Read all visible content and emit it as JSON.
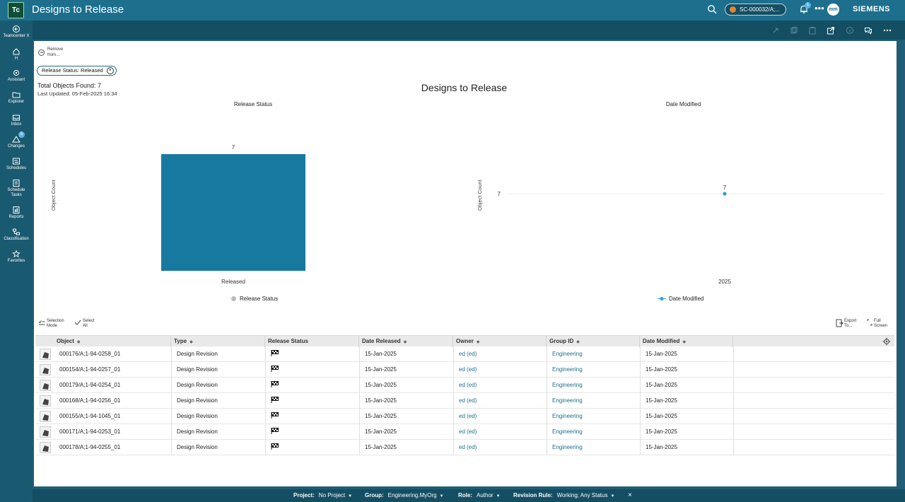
{
  "header": {
    "logo_text": "Tc",
    "title": "Designs to Release",
    "context": "SC-000032/A;...",
    "notification_count": "1",
    "more": "•••",
    "avatar": "mm",
    "brand": "SIEMENS"
  },
  "nav": {
    "items": [
      {
        "label": "Teamcenter X",
        "icon": "circle-arrow-icon"
      },
      {
        "label": "H",
        "icon": "home-icon"
      },
      {
        "label": "Assistant",
        "icon": "assistant-icon"
      },
      {
        "label": "Explorer",
        "icon": "folder-icon"
      },
      {
        "label": "Inbox",
        "icon": "inbox-icon"
      },
      {
        "label": "Changes",
        "icon": "triangle-icon"
      },
      {
        "label": "Schedules",
        "icon": "schedule-icon"
      },
      {
        "label": "Schedule Tasks",
        "icon": "tasks-icon"
      },
      {
        "label": "Reports",
        "icon": "report-icon"
      },
      {
        "label": "Classification",
        "icon": "classification-icon"
      },
      {
        "label": "Favorites",
        "icon": "star-icon"
      }
    ],
    "inbox_badge": "5"
  },
  "page": {
    "remove_label": "Remove from...",
    "filter_chip": "Release Status: Released",
    "total": "Total Objects Found: 7",
    "updated": "Last Updated: 05-Feb-2025 16:34",
    "report_title": "Designs to Release"
  },
  "chart_data": [
    {
      "type": "bar",
      "title": "Release Status",
      "ylabel": "Object Count",
      "categories": [
        "Released"
      ],
      "series": [
        {
          "name": "Release Status",
          "values": [
            7
          ]
        }
      ],
      "ylim": [
        0,
        7
      ],
      "legend": "bottom",
      "color": "#1779a0"
    },
    {
      "type": "scatter",
      "title": "Date Modified",
      "ylabel": "Object Count",
      "x": [
        "2025"
      ],
      "series": [
        {
          "name": "Date Modified",
          "values": [
            7
          ]
        }
      ],
      "y_ticks": [
        7
      ],
      "legend": "bottom",
      "color": "#2f9fd8"
    }
  ],
  "table_toolbar": {
    "selection_mode": "Selection Mode",
    "select_all": "Select All",
    "export": "Export To...",
    "full_screen": "Full Screen"
  },
  "table": {
    "columns": [
      "Object",
      "Type",
      "Release Status",
      "Date Released",
      "Owner",
      "Group ID",
      "Date Modified"
    ],
    "rows": [
      {
        "object": "000176/A;1-94-0258_01",
        "type": "Design Revision",
        "date_released": "15-Jan-2025",
        "owner": "ed (ed)",
        "group": "Engineering",
        "date_modified": "15-Jan-2025"
      },
      {
        "object": "000154/A;1-94-0257_01",
        "type": "Design Revision",
        "date_released": "15-Jan-2025",
        "owner": "ed (ed)",
        "group": "Engineering",
        "date_modified": "15-Jan-2025"
      },
      {
        "object": "000179/A;1-94-0254_01",
        "type": "Design Revision",
        "date_released": "15-Jan-2025",
        "owner": "ed (ed)",
        "group": "Engineering",
        "date_modified": "15-Jan-2025"
      },
      {
        "object": "000168/A;1-94-0256_01",
        "type": "Design Revision",
        "date_released": "15-Jan-2025",
        "owner": "ed (ed)",
        "group": "Engineering",
        "date_modified": "15-Jan-2025"
      },
      {
        "object": "000155/A;1-94-1045_01",
        "type": "Design Revision",
        "date_released": "15-Jan-2025",
        "owner": "ed (ed)",
        "group": "Engineering",
        "date_modified": "15-Jan-2025"
      },
      {
        "object": "000171/A;1-94-0253_01",
        "type": "Design Revision",
        "date_released": "15-Jan-2025",
        "owner": "ed (ed)",
        "group": "Engineering",
        "date_modified": "15-Jan-2025"
      },
      {
        "object": "000178/A;1-94-0255_01",
        "type": "Design Revision",
        "date_released": "15-Jan-2025",
        "owner": "ed (ed)",
        "group": "Engineering",
        "date_modified": "15-Jan-2025"
      }
    ]
  },
  "status_bar": {
    "project_label": "Project:",
    "project_value": "No Project",
    "group_label": "Group:",
    "group_value": "Engineering.MyOrg",
    "role_label": "Role:",
    "role_value": "Author",
    "rule_label": "Revision Rule:",
    "rule_value": "Working; Any Status",
    "close": "×"
  }
}
